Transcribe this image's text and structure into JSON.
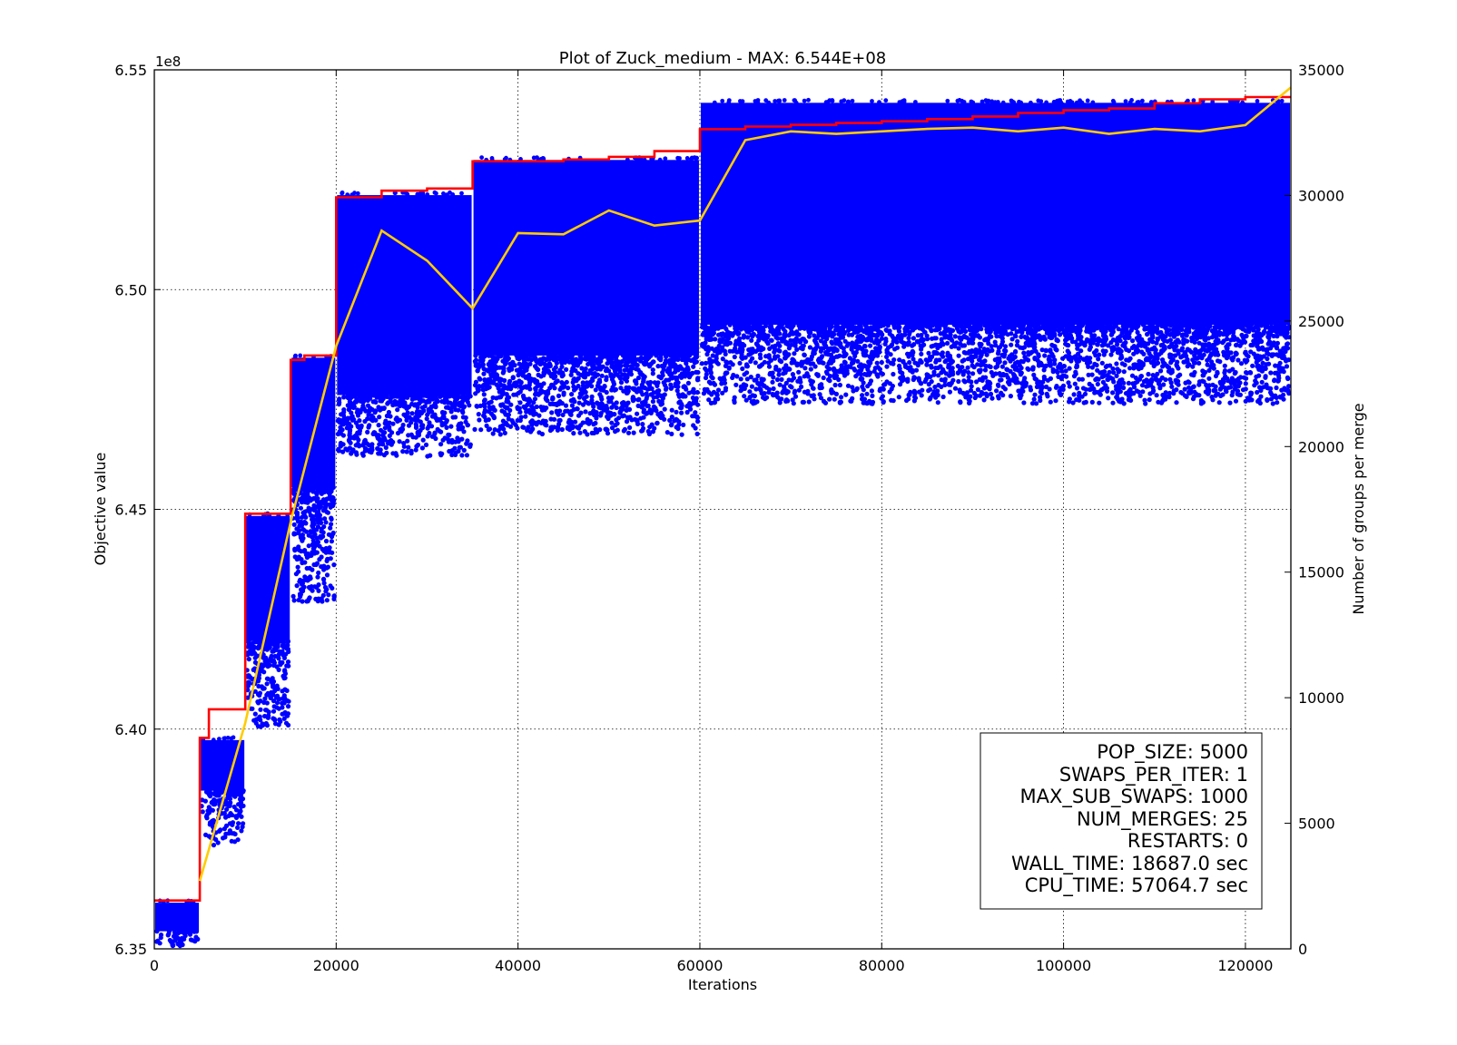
{
  "chart_data": {
    "type": "scatter",
    "title": "Plot of Zuck_medium - MAX: 6.544E+08",
    "xlabel": "Iterations",
    "ylabel": "Objective value",
    "y2label": "Number of groups per merge",
    "y_offset_label": "1e8",
    "xlim": [
      0,
      125000
    ],
    "ylim": [
      6.35,
      6.55
    ],
    "y2lim": [
      0,
      35000
    ],
    "x_ticks": [
      0,
      20000,
      40000,
      60000,
      80000,
      100000,
      120000
    ],
    "x_tick_labels": [
      "0",
      "20000",
      "40000",
      "60000",
      "80000",
      "100000",
      "120000"
    ],
    "y_ticks": [
      6.35,
      6.4,
      6.45,
      6.5,
      6.55
    ],
    "y_tick_labels": [
      "6.35",
      "6.40",
      "6.45",
      "6.50",
      "6.55"
    ],
    "y2_ticks": [
      0,
      5000,
      10000,
      15000,
      20000,
      25000,
      30000,
      35000
    ],
    "y2_tick_labels": [
      "0",
      "5000",
      "10000",
      "15000",
      "20000",
      "25000",
      "30000",
      "35000"
    ],
    "grid": true,
    "colors": {
      "scatter": "#0000ff",
      "best": "#ff0000",
      "groups": "#ffcc00"
    },
    "best_series": {
      "x": [
        0,
        5000,
        5000,
        6000,
        6000,
        10000,
        10000,
        15000,
        15000,
        16500,
        16500,
        20000,
        20000,
        25000,
        25000,
        30000,
        30000,
        35000,
        35000,
        45000,
        45000,
        50000,
        50000,
        55000,
        55000,
        60000,
        60000,
        65000,
        65000,
        70000,
        70000,
        75000,
        75000,
        80000,
        80000,
        85000,
        85000,
        90000,
        90000,
        95000,
        95000,
        100000,
        100000,
        105000,
        105000,
        110000,
        110000,
        115000,
        115000,
        120000,
        120000,
        125000
      ],
      "values": [
        6.361,
        6.361,
        6.398,
        6.398,
        6.4045,
        6.4045,
        6.449,
        6.449,
        6.484,
        6.484,
        6.485,
        6.485,
        6.521,
        6.521,
        6.5225,
        6.5225,
        6.523,
        6.523,
        6.5292,
        6.5292,
        6.5296,
        6.5296,
        6.5302,
        6.5302,
        6.5315,
        6.5315,
        6.5365,
        6.5365,
        6.5371,
        6.5371,
        6.5375,
        6.5375,
        6.5379,
        6.5379,
        6.5383,
        6.5383,
        6.5388,
        6.5388,
        6.5394,
        6.5394,
        6.5402,
        6.5402,
        6.5408,
        6.5408,
        6.5412,
        6.5412,
        6.5424,
        6.5424,
        6.5433,
        6.5433,
        6.5438,
        6.5438
      ]
    },
    "groups_series": {
      "x": [
        5000,
        10000,
        15000,
        20000,
        25000,
        30000,
        35000,
        40000,
        45000,
        50000,
        55000,
        60000,
        65000,
        70000,
        75000,
        80000,
        85000,
        90000,
        95000,
        100000,
        105000,
        110000,
        115000,
        120000,
        125000
      ],
      "values": [
        2700,
        9000,
        17000,
        24000,
        28600,
        27400,
        25500,
        28500,
        28450,
        29400,
        28800,
        29000,
        32200,
        32550,
        32450,
        32550,
        32650,
        32700,
        32550,
        32700,
        32450,
        32650,
        32550,
        32800,
        34300
      ]
    },
    "scatter_bands": [
      {
        "x": [
          0,
          5000
        ],
        "top": 6.3605,
        "dense_bottom": 6.354,
        "sparse_bottom": 6.3505
      },
      {
        "x": [
          5000,
          10000
        ],
        "top": 6.3975,
        "dense_bottom": 6.386,
        "sparse_bottom": 6.3735
      },
      {
        "x": [
          10000,
          15000
        ],
        "top": 6.4485,
        "dense_bottom": 6.42,
        "sparse_bottom": 6.4005
      },
      {
        "x": [
          15000,
          20000
        ],
        "top": 6.4845,
        "dense_bottom": 6.455,
        "sparse_bottom": 6.429
      },
      {
        "x": [
          20000,
          35000
        ],
        "top": 6.5215,
        "dense_bottom": 6.476,
        "sparse_bottom": 6.462
      },
      {
        "x": [
          35000,
          60000
        ],
        "top": 6.5295,
        "dense_bottom": 6.485,
        "sparse_bottom": 6.467
      },
      {
        "x": [
          60000,
          125000
        ],
        "top": 6.5425,
        "dense_bottom": 6.492,
        "sparse_bottom": 6.474
      }
    ],
    "annotation": [
      "POP_SIZE: 5000",
      "SWAPS_PER_ITER: 1",
      "MAX_SUB_SWAPS: 1000",
      "NUM_MERGES: 25",
      "RESTARTS: 0",
      "WALL_TIME: 18687.0 sec",
      "CPU_TIME: 57064.7 sec"
    ]
  }
}
